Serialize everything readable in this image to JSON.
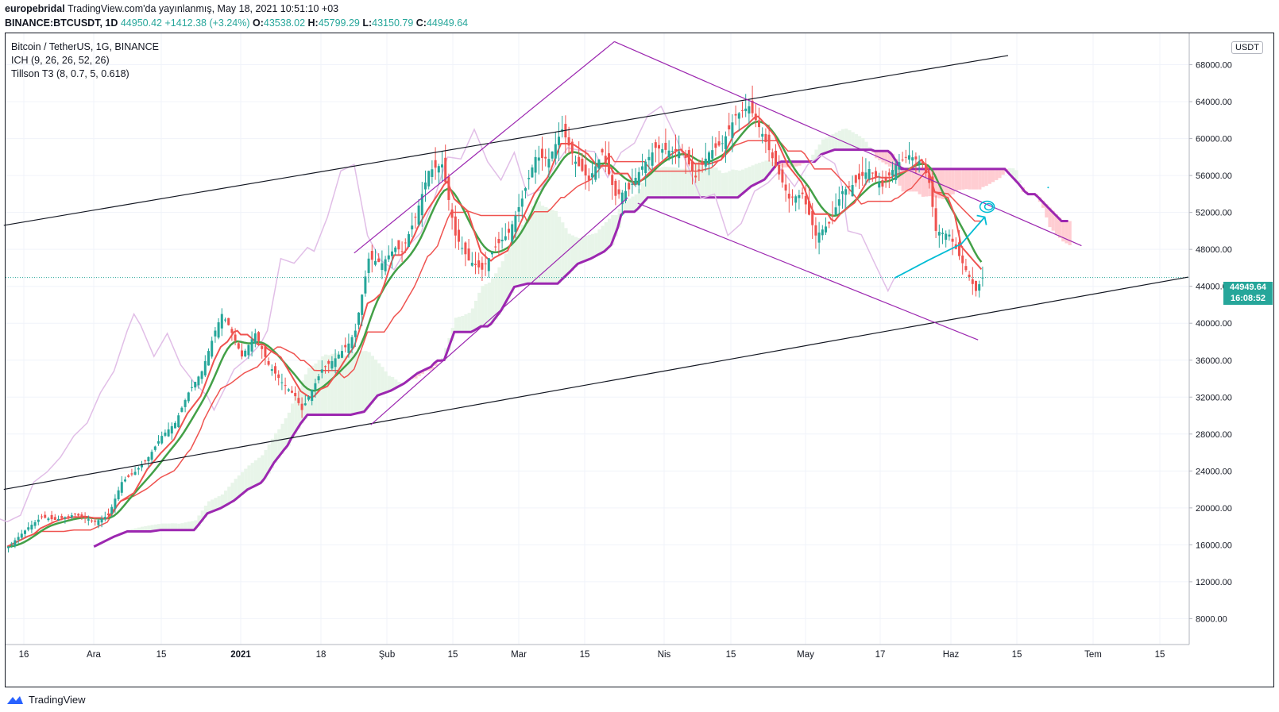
{
  "header": {
    "user": "europebridal",
    "published": "TradingView.com'da yayınlanmış, May 18, 2021 10:51:10 +03",
    "symbol_line": "BINANCE:BTCUSDT, 1D",
    "last": "44950.42",
    "change": "+1412.38 (+3.24%)",
    "o_label": "O:",
    "o": "43538.02",
    "h_label": "H:",
    "h": "45799.29",
    "l_label": "L:",
    "l": "43150.79",
    "c_label": "C:",
    "c": "44949.64"
  },
  "legend": {
    "title": "Bitcoin / TetherUS, 1G, BINANCE",
    "ind1": "ICH (9, 26, 26, 52, 26)",
    "ind2": "Tillson T3 (8, 0.7, 5, 0.618)"
  },
  "currency_button": "USDT",
  "current_price": {
    "value": "44949.64",
    "countdown": "16:08:52",
    "color": "#26a69a"
  },
  "footer": {
    "brand": "TradingView"
  },
  "colors": {
    "up": "#26a69a",
    "down": "#ef5350",
    "tenkan": "#ef5350",
    "t3": "#43a047",
    "kijun_purple": "#9c27b0",
    "lagging": "#e1bee7",
    "cloud_green": "#e8f5e9",
    "cloud_red": "#ffcdd2",
    "channel": "#9c27b0",
    "trend": "#131722",
    "arrow": "#00bcd4"
  },
  "chart_data": {
    "type": "candlestick",
    "y_axis": {
      "ticks": [
        "8000.00",
        "12000.00",
        "16000.00",
        "20000.00",
        "24000.00",
        "28000.00",
        "32000.00",
        "36000.00",
        "40000.00",
        "44000.00",
        "48000.00",
        "52000.00",
        "56000.00",
        "60000.00",
        "64000.00",
        "68000.00"
      ],
      "min": 5200,
      "max": 71400
    },
    "x_axis": {
      "labels": [
        "16",
        "Ara",
        "15",
        "2021",
        "18",
        "Şub",
        "15",
        "Mar",
        "15",
        "Nis",
        "15",
        "May",
        "17",
        "Haz",
        "15",
        "Tem",
        "15"
      ]
    },
    "price_points": [
      [
        0,
        15800
      ],
      [
        6,
        17900
      ],
      [
        10,
        19000
      ],
      [
        14,
        18700
      ],
      [
        20,
        19300
      ],
      [
        26,
        18500
      ],
      [
        30,
        19200
      ],
      [
        34,
        22800
      ],
      [
        38,
        23900
      ],
      [
        42,
        25500
      ],
      [
        46,
        27800
      ],
      [
        50,
        29200
      ],
      [
        54,
        32500
      ],
      [
        58,
        34800
      ],
      [
        62,
        39200
      ],
      [
        64,
        41000
      ],
      [
        66,
        39800
      ],
      [
        70,
        36400
      ],
      [
        74,
        38900
      ],
      [
        78,
        35500
      ],
      [
        82,
        33600
      ],
      [
        86,
        32100
      ],
      [
        88,
        30600
      ],
      [
        92,
        33500
      ],
      [
        94,
        35000
      ],
      [
        98,
        36200
      ],
      [
        102,
        37800
      ],
      [
        104,
        39200
      ],
      [
        108,
        47000
      ],
      [
        112,
        46500
      ],
      [
        116,
        48200
      ],
      [
        118,
        47800
      ],
      [
        122,
        51500
      ],
      [
        126,
        56500
      ],
      [
        130,
        57200
      ],
      [
        134,
        49500
      ],
      [
        138,
        46800
      ],
      [
        142,
        45800
      ],
      [
        146,
        48300
      ],
      [
        150,
        49800
      ],
      [
        154,
        53500
      ],
      [
        158,
        58000
      ],
      [
        162,
        57800
      ],
      [
        166,
        61000
      ],
      [
        170,
        57500
      ],
      [
        174,
        55500
      ],
      [
        178,
        58500
      ],
      [
        182,
        53800
      ],
      [
        186,
        54500
      ],
      [
        190,
        57000
      ],
      [
        194,
        59000
      ],
      [
        198,
        58700
      ],
      [
        202,
        58600
      ],
      [
        206,
        55800
      ],
      [
        210,
        58500
      ],
      [
        214,
        59500
      ],
      [
        218,
        62500
      ],
      [
        222,
        63500
      ],
      [
        226,
        60500
      ],
      [
        230,
        57000
      ],
      [
        234,
        53500
      ],
      [
        238,
        54000
      ],
      [
        242,
        49500
      ],
      [
        246,
        50800
      ],
      [
        250,
        54300
      ],
      [
        254,
        55200
      ],
      [
        258,
        56700
      ],
      [
        262,
        54800
      ],
      [
        266,
        57200
      ],
      [
        270,
        58200
      ],
      [
        274,
        57300
      ],
      [
        276,
        55200
      ],
      [
        278,
        50000
      ],
      [
        282,
        49600
      ],
      [
        286,
        46500
      ],
      [
        290,
        43500
      ],
      [
        292,
        44950
      ]
    ],
    "series": [
      {
        "name": "ICH (9, 26, 26, 52, 26)",
        "values": []
      },
      {
        "name": "Tillson T3 (8, 0.7, 5, 0.618)",
        "values": []
      }
    ],
    "annotations": [
      "ascending channel",
      "descending channel",
      "projection arrow"
    ]
  }
}
